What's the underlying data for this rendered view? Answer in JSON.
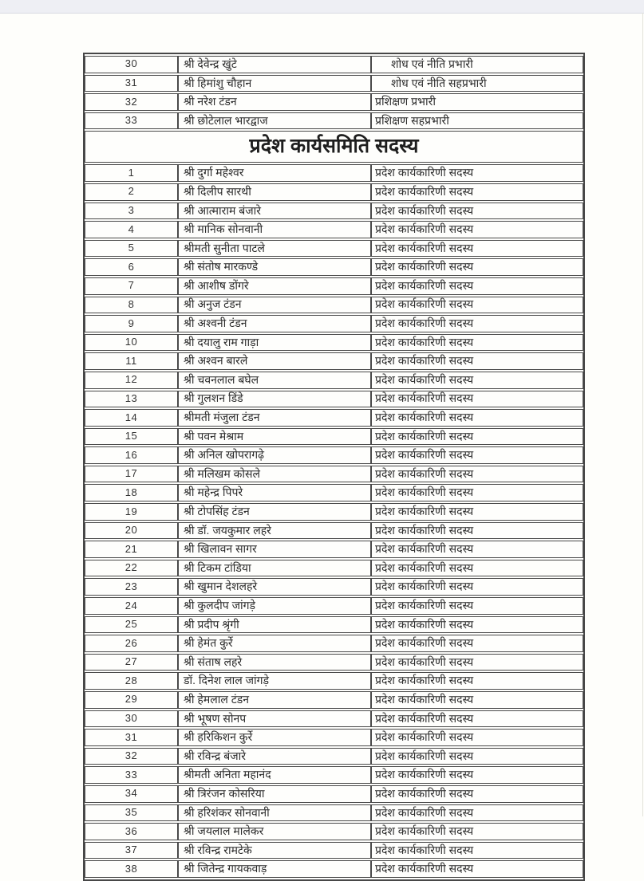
{
  "page": {
    "top_bar_color": "#eeeff4",
    "paper_color": "#fefefb",
    "border_color": "#4a4a4a"
  },
  "table": {
    "section_header": "प्रदेश कार्यसमिति सदस्य",
    "member_role": "प्रदेश कार्यकारिणी सदस्य",
    "pre_rows": [
      {
        "sno": "30",
        "name": "श्री देवेन्द्र खुंटे",
        "role": "शोध एवं नीति प्रभारी",
        "role_indent": true
      },
      {
        "sno": "31",
        "name": "श्री हिमांशु चौहान",
        "role": "शोध एवं नीति सहप्रभारी",
        "role_indent": true
      },
      {
        "sno": "32",
        "name": "श्री नरेश टंडन",
        "role": "प्रशिक्षण प्रभारी",
        "role_indent": false
      },
      {
        "sno": "33",
        "name": "श्री छोटेलाल भारद्वाज",
        "role": "प्रशिक्षण सहप्रभारी",
        "role_indent": false
      }
    ],
    "members": [
      {
        "sno": "1",
        "name": "श्री दुर्गा महेश्वर"
      },
      {
        "sno": "2",
        "name": "श्री दिलीप सारथी"
      },
      {
        "sno": "3",
        "name": "श्री आत्माराम बंजारे"
      },
      {
        "sno": "4",
        "name": "श्री मानिक सोनवानी"
      },
      {
        "sno": "5",
        "name": "श्रीमती सुनीता पाटले"
      },
      {
        "sno": "6",
        "name": "श्री संतोष मारकण्डे"
      },
      {
        "sno": "7",
        "name": "श्री आशीष डोंगरे"
      },
      {
        "sno": "8",
        "name": "श्री अनुज टंडन"
      },
      {
        "sno": "9",
        "name": "श्री अश्वनी टंडन"
      },
      {
        "sno": "10",
        "name": "श्री दयालु राम गाड़ा"
      },
      {
        "sno": "11",
        "name": "श्री अश्वन बारले"
      },
      {
        "sno": "12",
        "name": "श्री चवनलाल बघेल"
      },
      {
        "sno": "13",
        "name": "श्री गुलशन डिंडे"
      },
      {
        "sno": "14",
        "name": "श्रीमती मंजुला टंडन"
      },
      {
        "sno": "15",
        "name": "श्री पवन मेश्राम"
      },
      {
        "sno": "16",
        "name": "श्री अनिल खोपरागढ़े"
      },
      {
        "sno": "17",
        "name": "श्री मलिखम कोसले"
      },
      {
        "sno": "18",
        "name": "श्री महेन्द्र पिपरे"
      },
      {
        "sno": "19",
        "name": "श्री टोपसिंह टंडन"
      },
      {
        "sno": "20",
        "name": "श्री डॉ. जयकुमार लहरे"
      },
      {
        "sno": "21",
        "name": "श्री खिलावन सागर"
      },
      {
        "sno": "22",
        "name": "श्री टिकम टांडिया"
      },
      {
        "sno": "23",
        "name": "श्री खुमान देशलहरे"
      },
      {
        "sno": "24",
        "name": "श्री कुलदीप जांगड़े"
      },
      {
        "sno": "25",
        "name": "श्री प्रदीप श्रृंगी"
      },
      {
        "sno": "26",
        "name": "श्री हेमंत कुर्रे"
      },
      {
        "sno": "27",
        "name": "श्री संताष लहरे"
      },
      {
        "sno": "28",
        "name": "डॉ. दिनेश लाल जांगड़े"
      },
      {
        "sno": "29",
        "name": "श्री हेमलाल टंडन"
      },
      {
        "sno": "30",
        "name": "श्री भूषण सोनप"
      },
      {
        "sno": "31",
        "name": "श्री हरिकिशन कुर्रे"
      },
      {
        "sno": "32",
        "name": "श्री रविन्द्र बंजारे"
      },
      {
        "sno": "33",
        "name": "श्रीमती अनिता महानंद"
      },
      {
        "sno": "34",
        "name": "श्री त्रिरंजन कोसरिया"
      },
      {
        "sno": "35",
        "name": "श्री हरिशंकर सोनवानी"
      },
      {
        "sno": "36",
        "name": "श्री जयलाल मालेकर"
      },
      {
        "sno": "37",
        "name": "श्री रविन्द्र रामटेके"
      },
      {
        "sno": "38",
        "name": "श्री जितेन्द्र गायकवाड़"
      }
    ]
  }
}
